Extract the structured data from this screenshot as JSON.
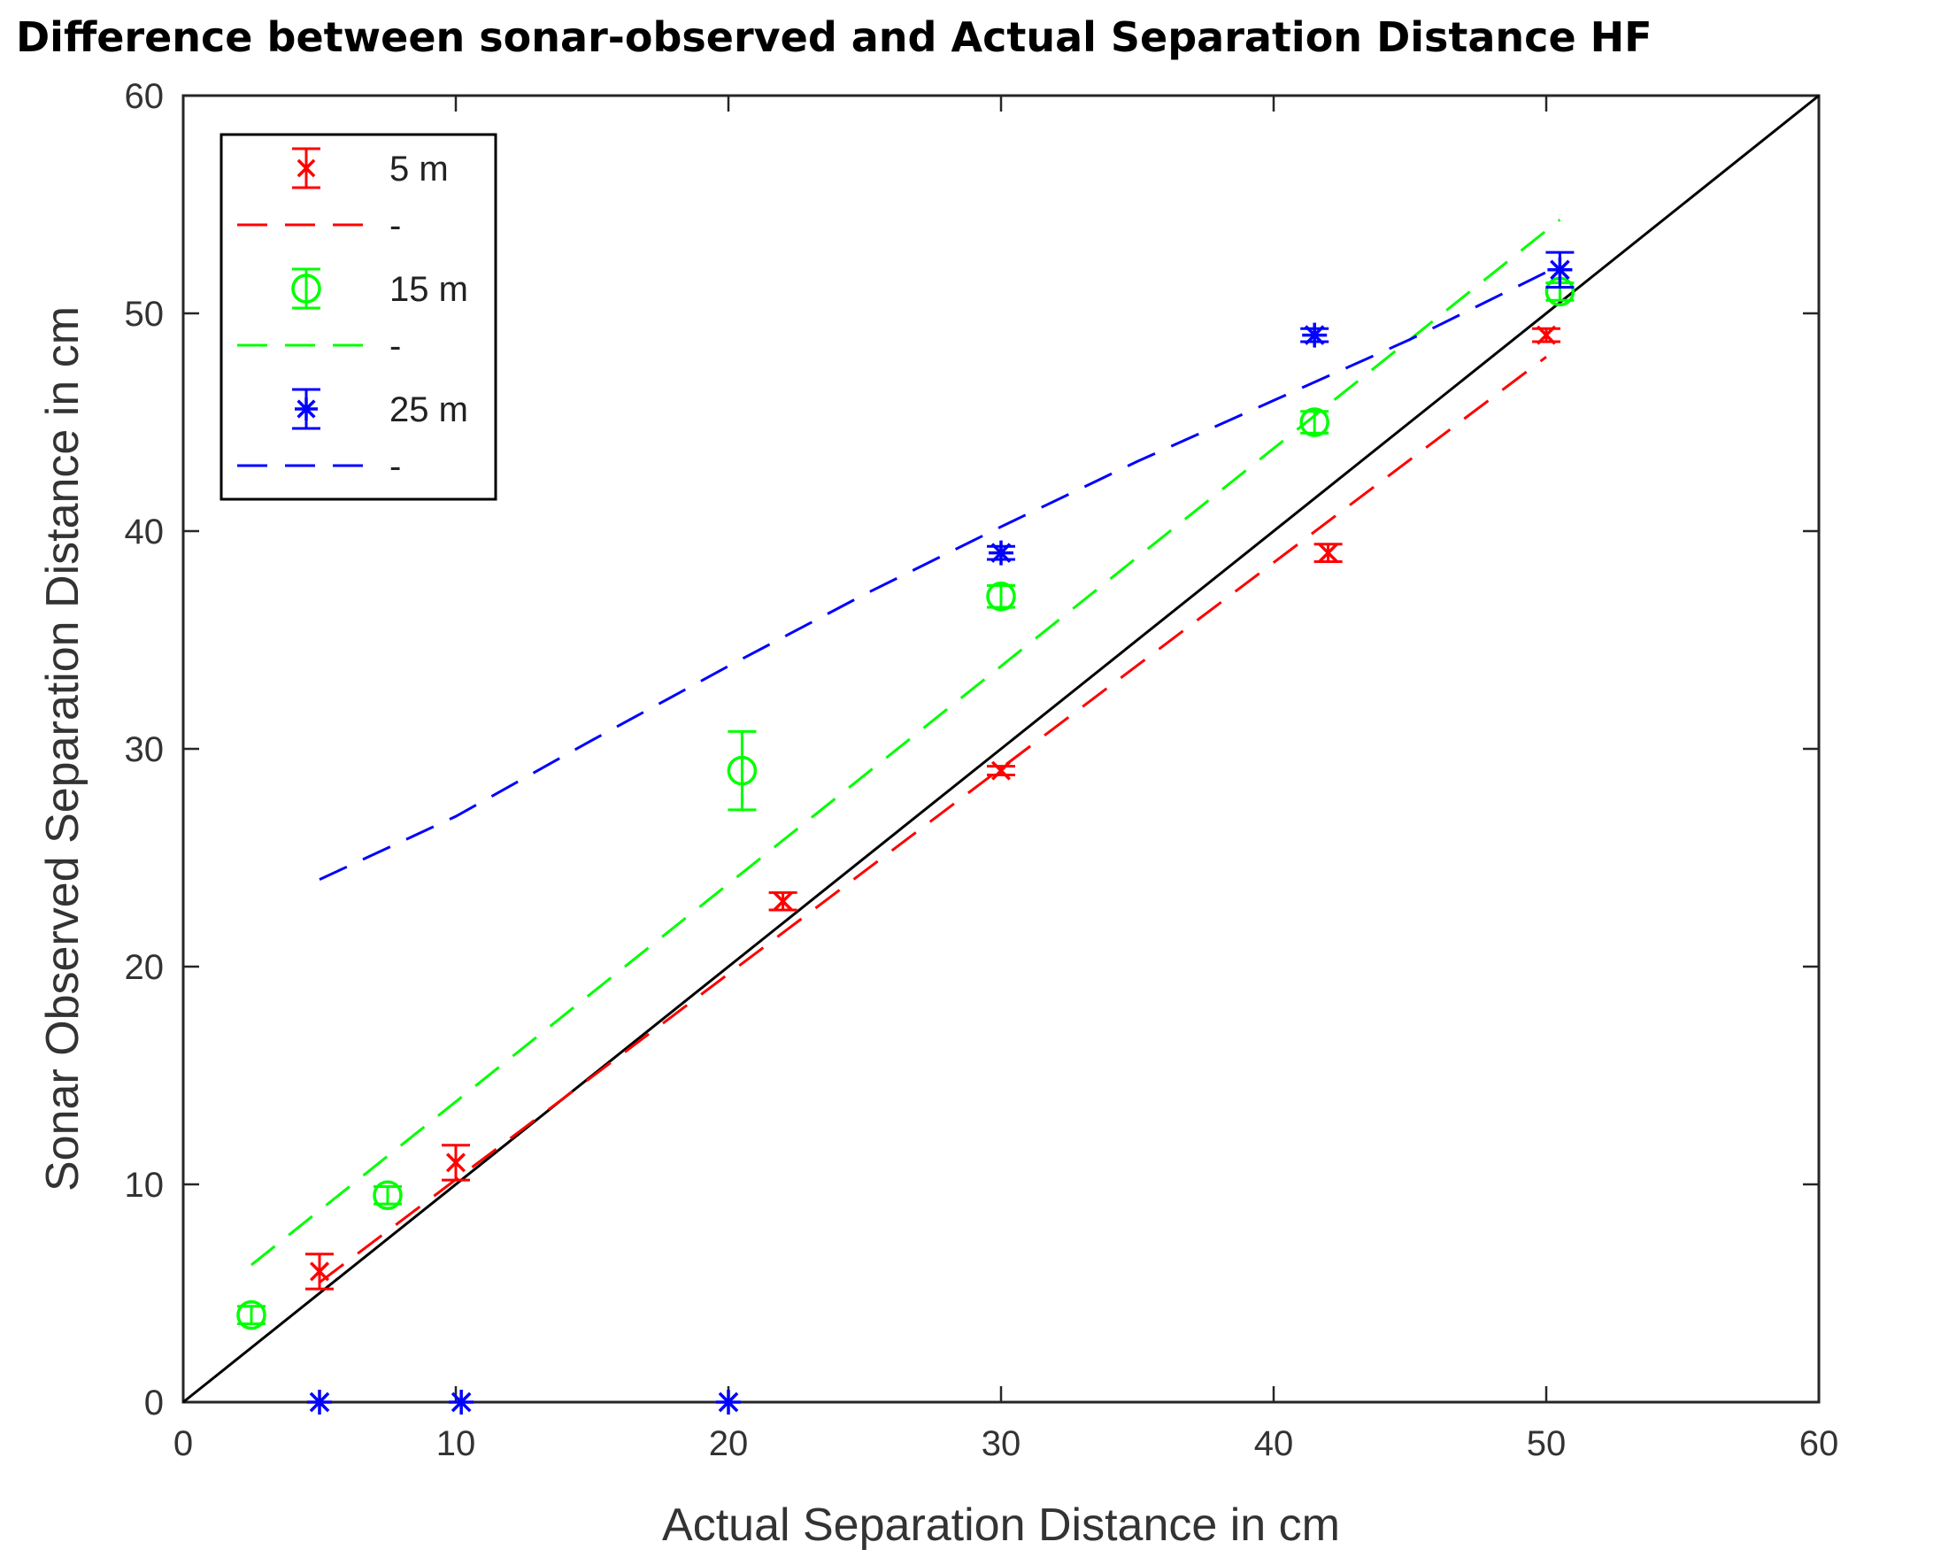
{
  "chart_data": {
    "type": "scatter",
    "title": "Difference between sonar-observed and Actual Separation Distance HF",
    "xlabel": "Actual Separation Distance in cm",
    "ylabel": "Sonar Observed Separation Distance in cm",
    "xlim": [
      0,
      60
    ],
    "ylim": [
      0,
      60
    ],
    "xticks": [
      "0",
      "10",
      "20",
      "30",
      "40",
      "50",
      "60"
    ],
    "yticks": [
      "0",
      "10",
      "20",
      "30",
      "40",
      "50",
      "60"
    ],
    "legend_position": "top-left",
    "colors": {
      "red": "#ff0000",
      "green": "#00ff00",
      "blue": "#0000ff",
      "reference": "#000000"
    },
    "reference_line": {
      "x": [
        0,
        60
      ],
      "y": [
        0,
        60
      ]
    },
    "series": [
      {
        "name": "5 m",
        "marker": "x",
        "color": "#ff0000",
        "points": [
          {
            "x": 5,
            "y": 6,
            "err": 0.8
          },
          {
            "x": 10,
            "y": 11,
            "err": 0.8
          },
          {
            "x": 22,
            "y": 23,
            "err": 0.4
          },
          {
            "x": 30,
            "y": 29,
            "err": 0.2
          },
          {
            "x": 42,
            "y": 39,
            "err": 0.4
          },
          {
            "x": 50,
            "y": 49,
            "err": 0.3
          }
        ],
        "fit_label": "-",
        "fit": {
          "x": [
            5,
            50
          ],
          "y": [
            5.5,
            48
          ]
        }
      },
      {
        "name": "15 m",
        "marker": "o",
        "color": "#00ff00",
        "points": [
          {
            "x": 2.5,
            "y": 4,
            "err": 0.4
          },
          {
            "x": 7.5,
            "y": 9.5,
            "err": 0.4
          },
          {
            "x": 20.5,
            "y": 29,
            "err": 1.8
          },
          {
            "x": 30,
            "y": 37,
            "err": 0.5
          },
          {
            "x": 41.5,
            "y": 45,
            "err": 0.5
          },
          {
            "x": 50.5,
            "y": 51,
            "err": 0.4
          }
        ],
        "fit_label": "-",
        "fit": {
          "x": [
            2.5,
            50.5
          ],
          "y": [
            6.3,
            54.3
          ]
        }
      },
      {
        "name": "25 m",
        "marker": "*",
        "color": "#0000ff",
        "points": [
          {
            "x": 5,
            "y": 0,
            "err": 0
          },
          {
            "x": 10.2,
            "y": 0,
            "err": 0
          },
          {
            "x": 20,
            "y": 0,
            "err": 0
          },
          {
            "x": 30,
            "y": 39,
            "err": 0.3
          },
          {
            "x": 41.5,
            "y": 49,
            "err": 0.3
          },
          {
            "x": 50.5,
            "y": 52,
            "err": 0.8
          }
        ],
        "fit_label": "-",
        "fit": {
          "x": [
            5,
            10,
            15,
            20,
            25,
            30,
            35,
            40,
            45,
            50.5
          ],
          "y": [
            24,
            26.9,
            30.4,
            33.8,
            37.1,
            40.2,
            43.2,
            46,
            48.8,
            52.2
          ]
        }
      }
    ]
  }
}
